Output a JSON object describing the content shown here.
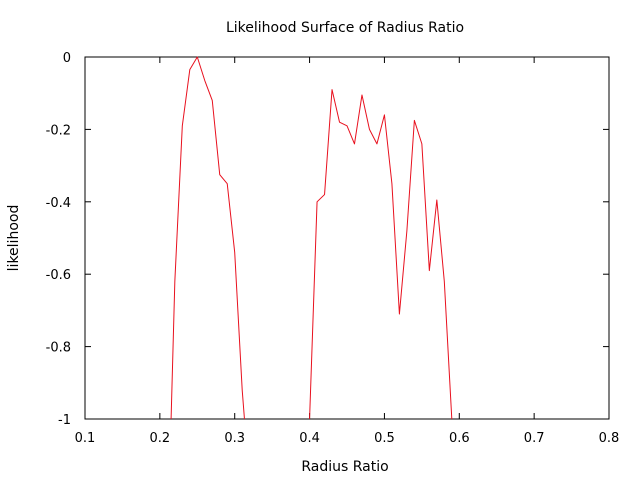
{
  "chart_data": {
    "type": "line",
    "title": "Likelihood Surface of Radius Ratio",
    "xlabel": "Radius Ratio",
    "ylabel": "likelihood",
    "xlim": [
      0.1,
      0.8
    ],
    "ylim": [
      -1,
      0
    ],
    "xticks": [
      0.1,
      0.2,
      0.3,
      0.4,
      0.5,
      0.6,
      0.7,
      0.8
    ],
    "xtick_labels": [
      "0.1",
      "0.2",
      "0.3",
      "0.4",
      "0.5",
      "0.6",
      "0.7",
      "0.8"
    ],
    "yticks": [
      0,
      -0.2,
      -0.4,
      -0.6,
      -0.8,
      -1
    ],
    "ytick_labels": [
      "0",
      "-0.2",
      "-0.4",
      "-0.6",
      "-0.8",
      "-1"
    ],
    "grid": false,
    "line_color": "#e8101e",
    "series": [
      {
        "x": [
          0.215,
          0.22,
          0.23,
          0.24,
          0.25,
          0.26,
          0.27,
          0.28,
          0.29,
          0.3,
          0.31,
          0.313
        ],
        "y": [
          -1.0,
          -0.62,
          -0.19,
          -0.035,
          0.0,
          -0.065,
          -0.12,
          -0.325,
          -0.35,
          -0.54,
          -0.92,
          -1.0
        ]
      },
      {
        "x": [
          0.4,
          0.41,
          0.42,
          0.43,
          0.44,
          0.45,
          0.46,
          0.47,
          0.48,
          0.49,
          0.5,
          0.51,
          0.52,
          0.53,
          0.54,
          0.55,
          0.56,
          0.57,
          0.58,
          0.59
        ],
        "y": [
          -1.0,
          -0.4,
          -0.38,
          -0.09,
          -0.18,
          -0.19,
          -0.24,
          -0.105,
          -0.2,
          -0.24,
          -0.16,
          -0.35,
          -0.71,
          -0.48,
          -0.175,
          -0.24,
          -0.59,
          -0.395,
          -0.62,
          -1.0
        ]
      }
    ]
  }
}
